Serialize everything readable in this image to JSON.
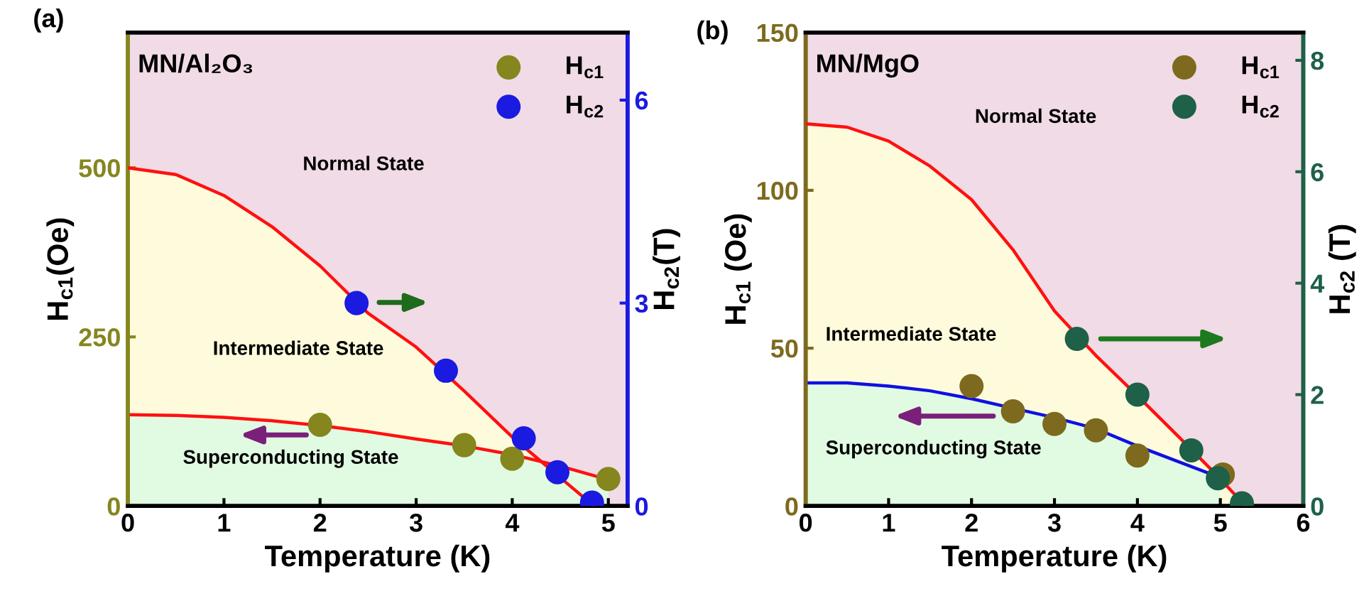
{
  "chart_data": [
    {
      "type": "scatter",
      "xlabel": "Temperature (K)",
      "ylabel": "H$_{c1}$(Oe)",
      "y2label": "H$_{c2}$(T)",
      "annotations": [
        "(a)",
        "MN/Al₂O₃",
        "Normal State",
        "Intermediate State",
        "Superconducting State"
      ],
      "xlim": [
        0,
        5.2
      ],
      "xticks": [
        0,
        1,
        2,
        3,
        4,
        5
      ],
      "ylim": [
        0,
        700
      ],
      "yticks": [
        0,
        250,
        500
      ],
      "y2lim": [
        0,
        7
      ],
      "y2ticks": [
        0,
        3,
        6
      ],
      "legend": "top right",
      "bands": [
        {
          "axis": "x",
          "from": 0,
          "to": 5.2,
          "color": "#f1dbe6"
        }
      ],
      "series": [
        {
          "type": "area",
          "axis": "y2",
          "color": "#fdfbdc",
          "x": [
            0,
            0.5,
            1,
            1.5,
            2,
            2.5,
            3,
            3.5,
            4,
            4.5,
            4.85
          ],
          "values": [
            5.0,
            4.9,
            4.59,
            4.13,
            3.55,
            2.85,
            2.35,
            1.7,
            1.02,
            0.42,
            0
          ]
        },
        {
          "type": "area",
          "axis": "y",
          "color": "#e0fbe2",
          "x": [
            0,
            0.5,
            1,
            1.5,
            2,
            2.5,
            3,
            3.5,
            4,
            4.5,
            5
          ],
          "values": [
            135,
            134,
            131,
            126,
            119,
            110,
            99,
            89,
            76,
            59,
            39
          ]
        },
        {
          "name": "H$_{c1}$",
          "axis": "y",
          "marker": "circle",
          "color": "#85861e",
          "x": [
            2.0,
            3.5,
            4.0,
            5.0
          ],
          "values": [
            120,
            90,
            70,
            40
          ]
        },
        {
          "name": "H$_{c2}$",
          "axis": "y2",
          "marker": "circle",
          "color": "#1a1ae0",
          "x": [
            2.38,
            3.31,
            4.12,
            4.47,
            4.83
          ],
          "values": [
            3.0,
            2.0,
            1.0,
            0.5,
            0.05
          ]
        }
      ]
    },
    {
      "type": "scatter",
      "xlabel": "Temperature (K)",
      "ylabel": "H$_{c1}$ (Oe)",
      "y2label": "H$_{c2}$ (T)",
      "annotations": [
        "(b)",
        "MN/MgO",
        "Normal State",
        "Intermediate State",
        "Superconducting State"
      ],
      "xlim": [
        0,
        6
      ],
      "xticks": [
        0,
        1,
        2,
        3,
        4,
        5,
        6
      ],
      "ylim": [
        0,
        150
      ],
      "yticks": [
        0,
        50,
        100,
        150
      ],
      "y2lim": [
        0,
        8.5
      ],
      "y2ticks": [
        0,
        2,
        4,
        6,
        8
      ],
      "legend": "top right",
      "bands": [
        {
          "axis": "x",
          "from": 0,
          "to": 6,
          "color": "#f1dbe6"
        }
      ],
      "series": [
        {
          "type": "area",
          "axis": "y2",
          "color": "#fdfbdc",
          "x": [
            0,
            0.5,
            1,
            1.5,
            2,
            2.5,
            3,
            3.5,
            4,
            4.5,
            5,
            5.3
          ],
          "values": [
            6.86,
            6.8,
            6.55,
            6.1,
            5.5,
            4.6,
            3.5,
            2.7,
            1.98,
            1.24,
            0.49,
            0
          ]
        },
        {
          "type": "area",
          "axis": "y",
          "color": "#e0fbe2",
          "x": [
            0,
            0.5,
            1,
            1.5,
            2,
            2.5,
            3,
            3.5,
            4,
            4.5,
            5
          ],
          "values": [
            39,
            39,
            38,
            36.5,
            34,
            31,
            28,
            24.5,
            19,
            14,
            9
          ]
        },
        {
          "name": "H$_{c1}$",
          "axis": "y",
          "marker": "circle",
          "color": "#7d6a1e",
          "x": [
            2.0,
            2.5,
            3.0,
            3.5,
            4.0,
            5.03
          ],
          "values": [
            38,
            30,
            26,
            24,
            16,
            10
          ]
        },
        {
          "name": "H$_{c2}$",
          "axis": "y2",
          "marker": "circle",
          "color": "#1e6048",
          "x": [
            3.27,
            4.0,
            4.65,
            4.97,
            5.26
          ],
          "values": [
            3.0,
            2.0,
            1.0,
            0.5,
            0.05
          ]
        }
      ]
    }
  ]
}
